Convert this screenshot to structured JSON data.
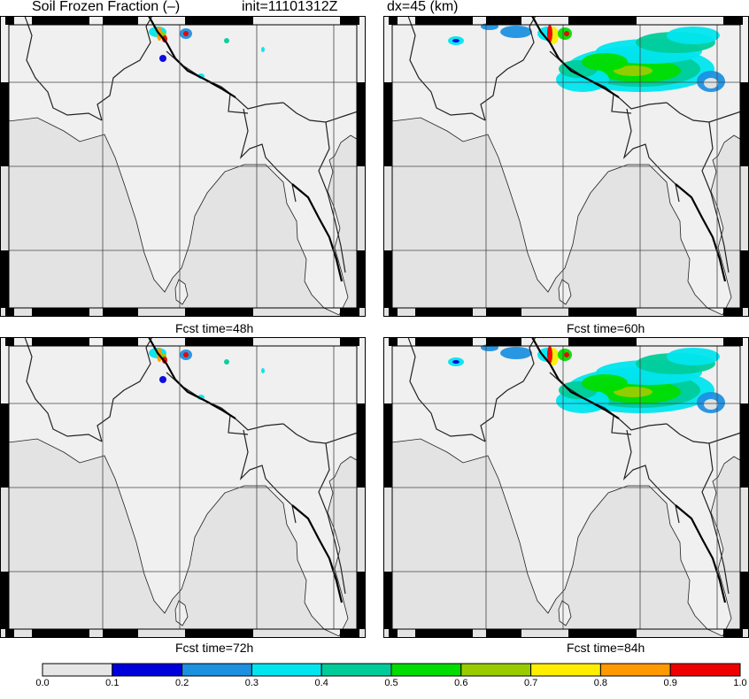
{
  "header": {
    "title": "Soil Frozen Fraction (–)",
    "init": "init=11101312Z",
    "dx": "dx=45 (km)"
  },
  "panels": [
    {
      "id": "p48",
      "label": "Fcst time=48h",
      "coverage": "low"
    },
    {
      "id": "p60",
      "label": "Fcst time=60h",
      "coverage": "high"
    },
    {
      "id": "p72",
      "label": "Fcst time=72h",
      "coverage": "low"
    },
    {
      "id": "p84",
      "label": "Fcst time=84h",
      "coverage": "high"
    }
  ],
  "colorbar": {
    "ticks": [
      "0.0",
      "0.1",
      "0.2",
      "0.3",
      "0.4",
      "0.5",
      "0.6",
      "0.7",
      "0.8",
      "0.9",
      "1.0"
    ],
    "colors": [
      "#e6e6e6",
      "#0000dd",
      "#1e90e0",
      "#00e5ee",
      "#00cc99",
      "#00dd00",
      "#99cc00",
      "#ffee00",
      "#ff9900",
      "#ee0000"
    ]
  },
  "style": {
    "land": "#f0f0f0",
    "ocean": "#e3e3e3",
    "grid": "#444444",
    "border": "#000000"
  }
}
